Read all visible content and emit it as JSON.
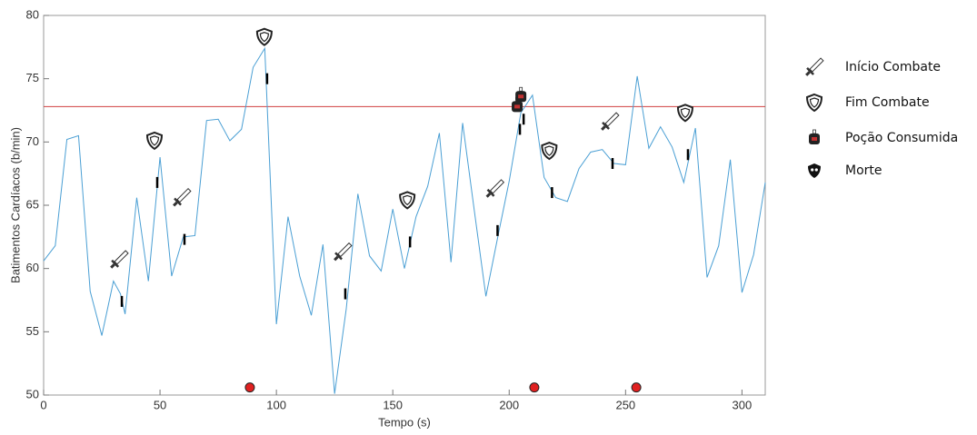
{
  "chart_data": {
    "type": "line",
    "xlabel": "Tempo (s)",
    "ylabel": "Batimentos Cardíacos (b/min)",
    "xlim": [
      0,
      310
    ],
    "ylim": [
      50,
      80
    ],
    "xticks": [
      0,
      50,
      100,
      150,
      200,
      250,
      300
    ],
    "yticks": [
      50,
      55,
      60,
      65,
      70,
      75,
      80
    ],
    "series": [
      {
        "color": "#4a9fd4",
        "x": [
          0,
          5,
          10,
          15,
          20,
          25,
          30,
          33,
          35,
          40,
          45,
          50,
          55,
          60,
          65,
          70,
          75,
          80,
          85,
          90,
          95,
          100,
          105,
          110,
          115,
          120,
          125,
          130,
          135,
          140,
          145,
          150,
          155,
          160,
          165,
          170,
          175,
          180,
          185,
          190,
          195,
          200,
          205,
          210,
          215,
          220,
          225,
          230,
          235,
          240,
          245,
          250,
          255,
          260,
          265,
          270,
          275,
          280,
          285,
          290,
          295,
          300,
          305,
          310
        ],
        "values": [
          60.6,
          61.8,
          70.2,
          70.5,
          58.2,
          54.7,
          59.0,
          58.0,
          56.4,
          65.6,
          59.0,
          68.8,
          59.4,
          62.5,
          62.6,
          71.7,
          71.8,
          70.1,
          71.0,
          75.9,
          77.4,
          55.6,
          64.1,
          59.4,
          56.3,
          61.9,
          50.1,
          56.8,
          65.9,
          61.0,
          59.8,
          64.7,
          60.0,
          64.1,
          66.5,
          70.7,
          60.5,
          71.5,
          64.6,
          57.8,
          62.4,
          66.9,
          72.3,
          73.7,
          67.2,
          65.6,
          65.3,
          67.9,
          69.2,
          69.4,
          68.3,
          68.2,
          75.2,
          69.5,
          71.2,
          69.6,
          66.8,
          71.1,
          59.3,
          61.8,
          68.6,
          58.1,
          61.1,
          66.8
        ]
      }
    ],
    "reference_line": {
      "value": 72.8,
      "color": "#d04040"
    },
    "events": [
      {
        "name": "Início Combate",
        "color": "#000000",
        "x": [
          33.6,
          60.5,
          129.6,
          195,
          244.4
        ],
        "y": [
          57.4,
          62.3,
          58.0,
          63.0,
          68.3
        ]
      },
      {
        "name": "Fim Combate",
        "color": "#000000",
        "x": [
          48.8,
          96,
          157.4,
          218.4,
          276.8
        ],
        "y": [
          66.8,
          75.0,
          62.1,
          66.0,
          69.0
        ]
      },
      {
        "name": "Poção Consumida",
        "color": "#000000",
        "x": [
          204.6,
          206.2
        ],
        "y": [
          71.0,
          71.8
        ]
      },
      {
        "name": "Morte",
        "color": "#e02020",
        "x": [
          88.6,
          210.8,
          254.6
        ],
        "y": [
          50.6,
          50.6,
          50.6
        ]
      }
    ]
  }
}
